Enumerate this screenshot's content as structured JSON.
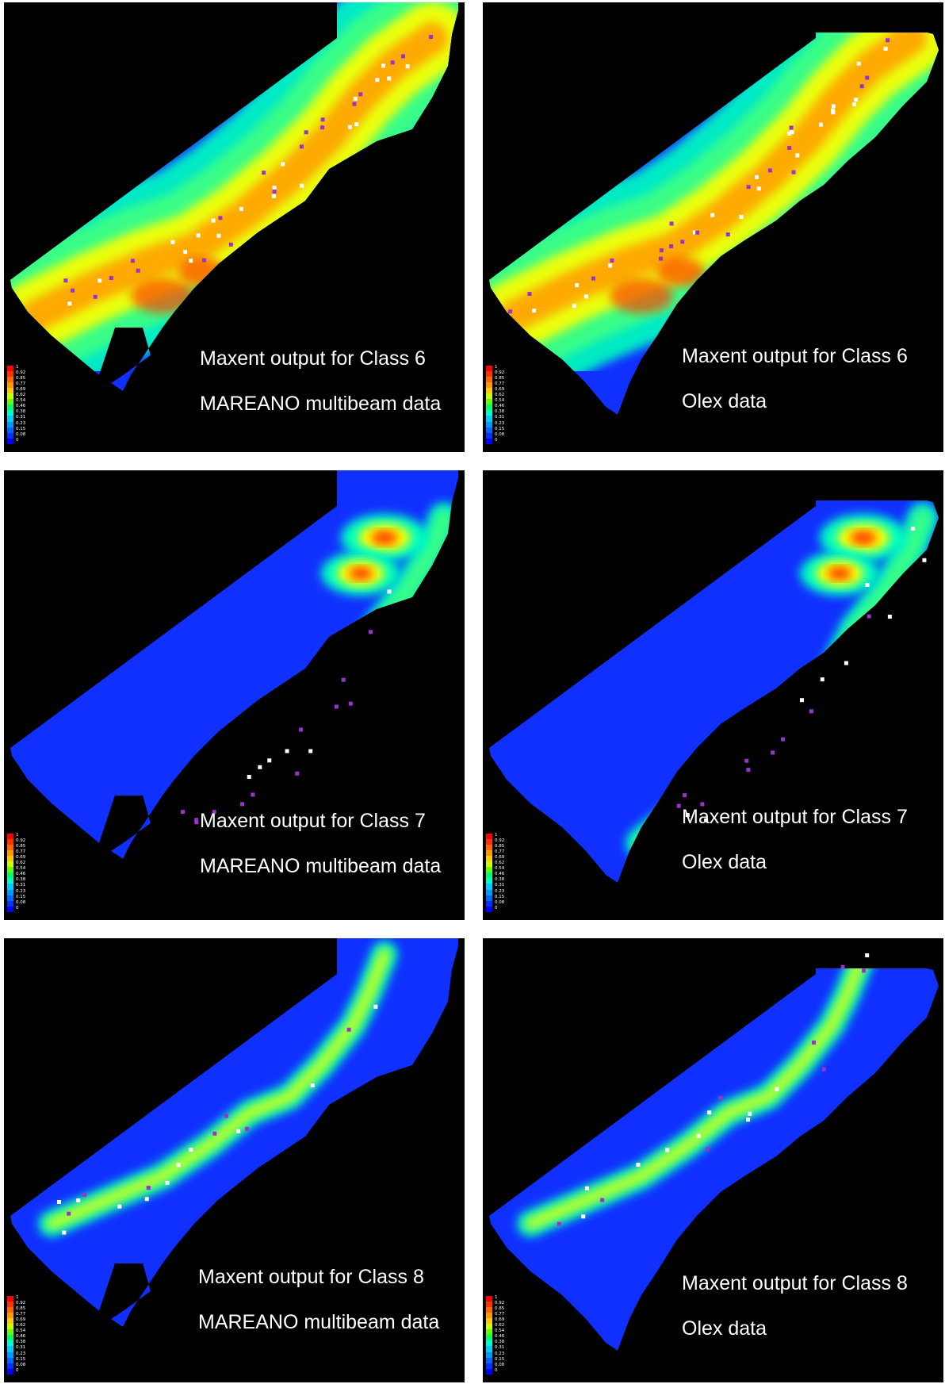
{
  "panels": [
    {
      "id": "p6m",
      "title": "Maxent output for Class 6",
      "source": "MAREANO multibeam data",
      "class": 6,
      "dataset": "mareano",
      "spread": "wide"
    },
    {
      "id": "p6o",
      "title": "Maxent output for Class 6",
      "source": "Olex data",
      "class": 6,
      "dataset": "olex",
      "spread": "wide"
    },
    {
      "id": "p7m",
      "title": "Maxent output for Class 7",
      "source": "MAREANO multibeam data",
      "class": 7,
      "dataset": "mareano",
      "spread": "ne"
    },
    {
      "id": "p7o",
      "title": "Maxent output for Class 7",
      "source": "Olex data",
      "class": 7,
      "dataset": "olex",
      "spread": "ne"
    },
    {
      "id": "p8m",
      "title": "Maxent output for Class 8",
      "source": "MAREANO multibeam data",
      "class": 8,
      "dataset": "mareano",
      "spread": "narrow"
    },
    {
      "id": "p8o",
      "title": "Maxent output for Class 8",
      "source": "Olex data",
      "class": 8,
      "dataset": "olex",
      "spread": "narrow"
    }
  ],
  "legend": {
    "labels": [
      "1",
      "0.92",
      "0.85",
      "0.77",
      "0.69",
      "0.62",
      "0.54",
      "0.46",
      "0.38",
      "0.31",
      "0.23",
      "0.15",
      "0.08",
      "0"
    ],
    "colors": [
      "#ff0000",
      "#ff3300",
      "#ff6600",
      "#ff9900",
      "#ffcc00",
      "#ccff00",
      "#66ff00",
      "#00ff66",
      "#00ffcc",
      "#00ccff",
      "#0099ff",
      "#0066ff",
      "#0033ff",
      "#0000ff"
    ]
  },
  "colors": {
    "background": "#000000",
    "low_prob": "#1030ff",
    "mid_prob": "#00ffc0",
    "high_prob": "#ffff00",
    "peak_prob": "#ff4000",
    "presence_white": "#ffffff",
    "presence_purple": "#9933cc"
  }
}
